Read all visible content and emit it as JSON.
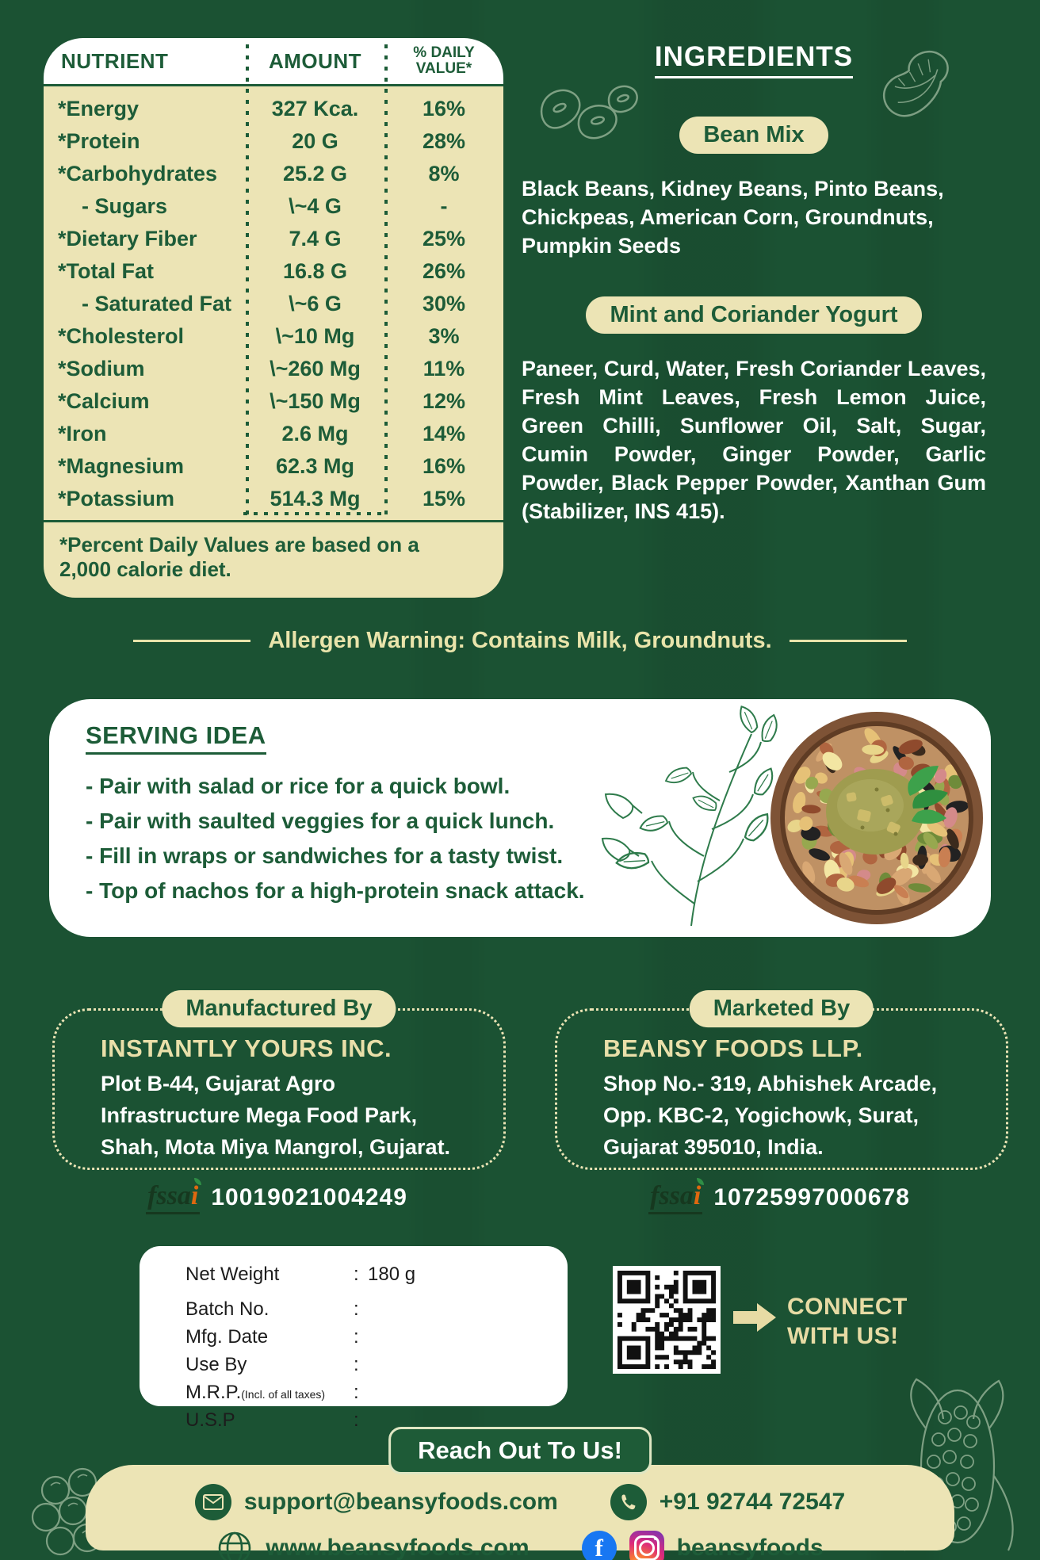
{
  "colors": {
    "background_green": "#1b5233",
    "cream": "#ece4b5",
    "dark_green": "#1d5c38",
    "white": "#ffffff",
    "allergen_text": "#e9e4ab",
    "facebook_blue": "#1877f2",
    "fssai_orange": "#e0680f",
    "qr_black": "#111111"
  },
  "nutrition_table": {
    "headers": {
      "col1": "NUTRIENT",
      "col2": "AMOUNT",
      "col3_line1": "% DAILY",
      "col3_line2": "VALUE*"
    },
    "rows": [
      {
        "nutrient": "*Energy",
        "amount": "327 Kca.",
        "dv": "16%"
      },
      {
        "nutrient": "*Protein",
        "amount": "20 G",
        "dv": "28%"
      },
      {
        "nutrient": "*Carbohydrates",
        "amount": "25.2 G",
        "dv": "8%"
      },
      {
        "nutrient": "- Sugars",
        "amount": "\\~4 G",
        "dv": "-"
      },
      {
        "nutrient": "*Dietary Fiber",
        "amount": "7.4 G",
        "dv": "25%"
      },
      {
        "nutrient": "*Total Fat",
        "amount": "16.8 G",
        "dv": "26%"
      },
      {
        "nutrient": "- Saturated Fat",
        "amount": "\\~6 G",
        "dv": "30%"
      },
      {
        "nutrient": "*Cholesterol",
        "amount": "\\~10 Mg",
        "dv": "3%"
      },
      {
        "nutrient": "*Sodium",
        "amount": "\\~260 Mg",
        "dv": "11%"
      },
      {
        "nutrient": "*Calcium",
        "amount": "\\~150 Mg",
        "dv": "12%"
      },
      {
        "nutrient": "*Iron",
        "amount": "2.6 Mg",
        "dv": "14%"
      },
      {
        "nutrient": "*Magnesium",
        "amount": "62.3 Mg",
        "dv": "16%"
      },
      {
        "nutrient": "*Potassium",
        "amount": "514.3 Mg",
        "dv": "15%"
      }
    ],
    "footnote": "*Percent Daily Values are based on a 2,000 calorie diet."
  },
  "ingredients": {
    "title": "INGREDIENTS",
    "bean_mix_label": "Bean Mix",
    "bean_mix_text": "Black Beans, Kidney Beans, Pinto Beans, Chickpeas, American Corn, Groundnuts, Pumpkin Seeds",
    "yogurt_label": "Mint and Coriander Yogurt",
    "yogurt_text": "Paneer, Curd, Water, Fresh Coriander Leaves, Fresh Mint Leaves, Fresh Lemon Juice, Green Chilli, Sunflower Oil, Salt, Sugar, Cumin Powder, Ginger Powder, Garlic Powder, Black Pepper Powder, Xanthan Gum (Stabilizer, INS 415)."
  },
  "allergen_warning": "Allergen Warning: Contains Milk, Groundnuts.",
  "serving_idea": {
    "title": "SERVING IDEA",
    "items": [
      "- Pair with salad or rice for a quick bowl.",
      "- Pair with saulted veggies for a quick lunch.",
      "- Fill in wraps or sandwiches for a tasty twist.",
      "- Top of nachos for a high-protein snack attack."
    ]
  },
  "manufactured_by": {
    "pill": "Manufactured By",
    "name": "INSTANTLY YOURS INC.",
    "address_lines": [
      "Plot B-44, Gujarat Agro",
      "Infrastructure Mega Food Park,",
      "Shah, Mota Miya Mangrol, Gujarat."
    ],
    "fssai_word": "fssa",
    "fssai_i": "i",
    "fssai_number": "10019021004249"
  },
  "marketed_by": {
    "pill": "Marketed By",
    "name": "BEANSY FOODS LLP.",
    "address_lines": [
      "Shop No.- 319, Abhishek Arcade,",
      "Opp. KBC-2, Yogichowk, Surat,",
      "Gujarat 395010, India."
    ],
    "fssai_word": "fssa",
    "fssai_i": "i",
    "fssai_number": "10725997000678"
  },
  "product_info": {
    "colon": ":",
    "rows": [
      {
        "label": "Net Weight",
        "note": "",
        "value": "180 g"
      },
      {
        "label": "Batch No.",
        "note": "",
        "value": ""
      },
      {
        "label": "Mfg. Date",
        "note": "",
        "value": ""
      },
      {
        "label": "Use By",
        "note": "",
        "value": ""
      },
      {
        "label": "M.R.P.",
        "note": "(Incl. of all taxes)",
        "value": ""
      },
      {
        "label": "U.S.P",
        "note": "",
        "value": ""
      }
    ]
  },
  "connect": {
    "line1": "CONNECT",
    "line2": "WITH US!"
  },
  "reach_out": {
    "pill": "Reach Out To Us!",
    "email": "support@beansyfoods.com",
    "phone": "+91 92744 72547",
    "website": "www.beansyfoods.com",
    "social_handle": "beansyfoods",
    "facebook_glyph": "f"
  },
  "icons": {
    "email": "envelope-icon",
    "phone": "phone-icon",
    "website": "globe-icon",
    "facebook": "facebook-icon",
    "instagram": "instagram-icon",
    "qr": "qr-code-image",
    "arrow": "arrow-right-icon"
  }
}
